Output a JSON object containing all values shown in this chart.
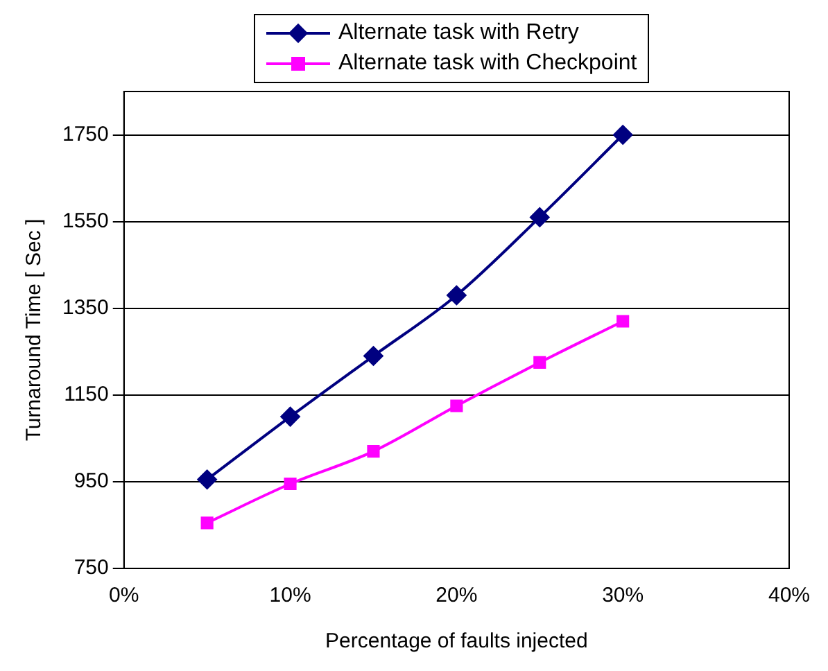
{
  "chart_data": {
    "type": "line",
    "xlabel": "Percentage of faults injected",
    "ylabel": "Turnaround Time [ Sec ]",
    "x": [
      5,
      10,
      15,
      20,
      25,
      30
    ],
    "series": [
      {
        "name": "Alternate task with Retry",
        "color": "#000080",
        "marker": "diamond",
        "values": [
          955,
          1100,
          1240,
          1380,
          1560,
          1750
        ]
      },
      {
        "name": "Alternate task with Checkpoint",
        "color": "#ff00ff",
        "marker": "square",
        "values": [
          855,
          945,
          1020,
          1125,
          1225,
          1320
        ]
      }
    ],
    "xlim": [
      0,
      40
    ],
    "xticks": [
      {
        "value": 0,
        "label": "0%"
      },
      {
        "value": 10,
        "label": "10%"
      },
      {
        "value": 20,
        "label": "20%"
      },
      {
        "value": 30,
        "label": "30%"
      },
      {
        "value": 40,
        "label": "40%"
      }
    ],
    "ylim": [
      750,
      1850
    ],
    "yticks": [
      750,
      950,
      1150,
      1350,
      1550,
      1750
    ],
    "grid": "y",
    "legend": "top"
  }
}
